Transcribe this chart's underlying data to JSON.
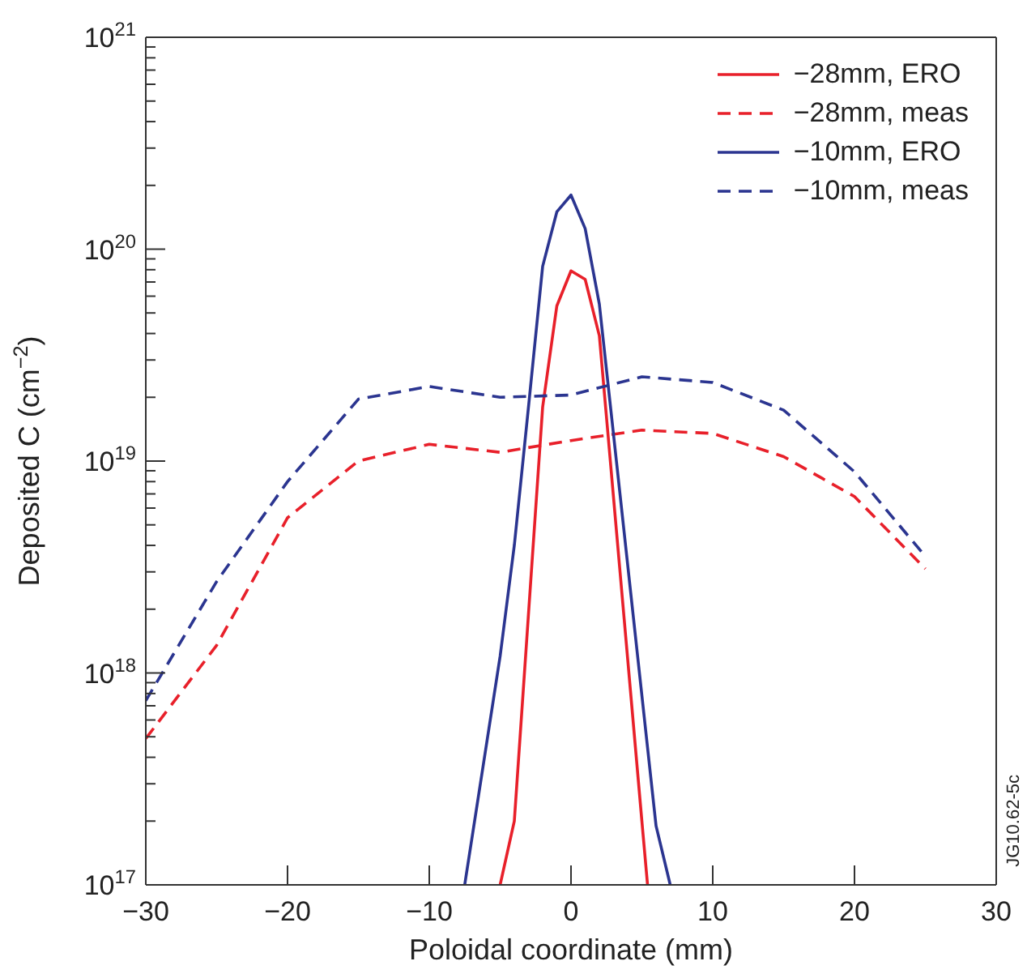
{
  "chart_data": {
    "type": "line",
    "xlabel": "Poloidal coordinate (mm)",
    "ylabel": "Deposited C (cm$^{−2}$)",
    "log": "y",
    "xlim": [
      -30,
      30
    ],
    "xticks": [
      {
        "value": -30,
        "label": "−30"
      },
      {
        "value": -20,
        "label": "−20"
      },
      {
        "value": -10,
        "label": "−10"
      },
      0,
      10,
      20,
      30
    ],
    "ylim": [
      1e+17,
      1e+21
    ],
    "yticks": [
      {
        "value": 1e+17,
        "label": "10$^{17}$"
      },
      {
        "value": 2e+17,
        "label": null
      },
      {
        "value": 3e+17,
        "label": null
      },
      {
        "value": 4e+17,
        "label": null
      },
      {
        "value": 5e+17,
        "label": null
      },
      {
        "value": 6e+17,
        "label": null
      },
      {
        "value": 7e+17,
        "label": null
      },
      {
        "value": 8e+17,
        "label": null
      },
      {
        "value": 9e+17,
        "label": null
      },
      {
        "value": 1e+18,
        "label": "10$^{18}$"
      },
      {
        "value": 2e+18,
        "label": null
      },
      {
        "value": 3e+18,
        "label": null
      },
      {
        "value": 4e+18,
        "label": null
      },
      {
        "value": 5e+18,
        "label": null
      },
      {
        "value": 6e+18,
        "label": null
      },
      {
        "value": 7e+18,
        "label": null
      },
      {
        "value": 8e+18,
        "label": null
      },
      {
        "value": 9e+18,
        "label": null
      },
      {
        "value": 1e+19,
        "label": "10$^{19}$"
      },
      {
        "value": 2e+19,
        "label": null
      },
      {
        "value": 3e+19,
        "label": null
      },
      {
        "value": 4e+19,
        "label": null
      },
      {
        "value": 5e+19,
        "label": null
      },
      {
        "value": 6e+19,
        "label": null
      },
      {
        "value": 7e+19,
        "label": null
      },
      {
        "value": 8e+19,
        "label": null
      },
      {
        "value": 9e+19,
        "label": null
      },
      {
        "value": 1e+20,
        "label": "10$^{20}$"
      },
      {
        "value": 2e+20,
        "label": null
      },
      {
        "value": 3e+20,
        "label": null
      },
      {
        "value": 4e+20,
        "label": null
      },
      {
        "value": 5e+20,
        "label": null
      },
      {
        "value": 6e+20,
        "label": null
      },
      {
        "value": 7e+20,
        "label": null
      },
      {
        "value": 8e+20,
        "label": null
      },
      {
        "value": 9e+20,
        "label": null
      },
      {
        "value": 1e+21,
        "label": "10$^{21}$"
      }
    ],
    "grid": false,
    "legend": "top right",
    "marker": "none",
    "annotations": [
      "JG10.62-5c"
    ],
    "series": [
      {
        "name": "−28mm, ERO",
        "color": "#e8202a",
        "line_style": "solid",
        "x": [
          -5,
          -4,
          -2,
          -1,
          0,
          1,
          2,
          5,
          5.4
        ],
        "values": [
          1e+17,
          2e+17,
          1.8e+19,
          5.4e+19,
          7.9e+19,
          7.2e+19,
          3.9e+19,
          2e+17,
          1e+17
        ]
      },
      {
        "name": "−28mm, meas",
        "color": "#e8202a",
        "line_style": "dashed",
        "x": [
          -30,
          -25,
          -20,
          -15,
          -10,
          -5,
          0,
          5,
          10,
          15,
          20,
          25
        ],
        "values": [
          4.9e+17,
          1.35e+18,
          5.4e+18,
          1e+19,
          1.2e+19,
          1.1e+19,
          1.25e+19,
          1.4e+19,
          1.35e+19,
          1.05e+19,
          6.8e+18,
          3.1e+18
        ]
      },
      {
        "name": "−10mm, ERO",
        "color": "#2b3590",
        "line_style": "solid",
        "x": [
          -7.5,
          -5,
          -4,
          -3,
          -2,
          -1,
          0,
          1,
          2,
          6,
          7
        ],
        "values": [
          1e+17,
          1.2e+18,
          4e+18,
          1.8e+19,
          8.3e+19,
          1.5e+20,
          1.8e+20,
          1.25e+20,
          5.5e+19,
          1.9e+17,
          1e+17
        ]
      },
      {
        "name": "−10mm, meas",
        "color": "#2b3590",
        "line_style": "dashed",
        "x": [
          -30,
          -25,
          -20,
          -15,
          -10,
          -5,
          0,
          5,
          10,
          15,
          20,
          25
        ],
        "values": [
          7.4e+17,
          2.7e+18,
          8e+18,
          1.96e+19,
          2.25e+19,
          2e+19,
          2.05e+19,
          2.5e+19,
          2.35e+19,
          1.74e+19,
          8.9e+18,
          3.55e+18
        ]
      }
    ]
  }
}
